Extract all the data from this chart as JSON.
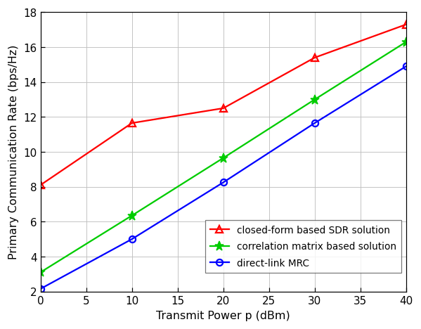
{
  "x": [
    0,
    10,
    20,
    30,
    40
  ],
  "sdr": [
    8.1,
    11.65,
    12.5,
    15.4,
    17.3
  ],
  "corr": [
    3.1,
    6.35,
    9.65,
    13.0,
    16.3
  ],
  "mrc": [
    2.15,
    5.0,
    8.25,
    11.65,
    14.9
  ],
  "sdr_color": "#ff0000",
  "corr_color": "#00cc00",
  "mrc_color": "#0000ff",
  "xlabel": "Transmit Power p (dBm)",
  "ylabel": "Primary Communication Rate (bps/Hz)",
  "xlim": [
    0,
    40
  ],
  "ylim": [
    2,
    18
  ],
  "xticks": [
    0,
    5,
    10,
    15,
    20,
    25,
    30,
    35,
    40
  ],
  "yticks": [
    2,
    4,
    6,
    8,
    10,
    12,
    14,
    16,
    18
  ],
  "legend_sdr": "closed-form based SDR solution",
  "legend_corr": "correlation matrix based solution",
  "legend_mrc": "direct-link MRC",
  "bg_color": "#ffffff",
  "grid_color": "#c0c0c0"
}
